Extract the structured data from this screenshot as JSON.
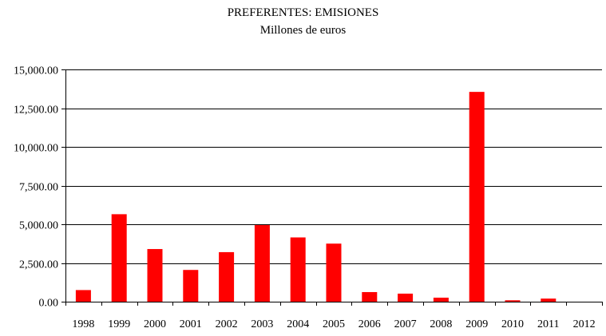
{
  "chart_data": {
    "type": "bar",
    "title": "PREFERENTES: EMISIONES",
    "subtitle": "Millones de euros",
    "categories": [
      "1998",
      "1999",
      "2000",
      "2001",
      "2002",
      "2003",
      "2004",
      "2005",
      "2006",
      "2007",
      "2008",
      "2009",
      "2010",
      "2011",
      "2012"
    ],
    "values": [
      750,
      5650,
      3400,
      2050,
      3200,
      4950,
      4150,
      3750,
      620,
      520,
      260,
      13550,
      90,
      200,
      0
    ],
    "y_ticks": [
      0,
      2500,
      5000,
      7500,
      10000,
      12500,
      15000
    ],
    "y_tick_labels": [
      "0.00",
      "2,500.00",
      "5,000.00",
      "7,500.00",
      "10,000.00",
      "12,500.00",
      "15,000.00"
    ],
    "ylim": [
      0,
      15000
    ],
    "grid": true,
    "legend": "none",
    "bar_color": "#ff0000"
  }
}
